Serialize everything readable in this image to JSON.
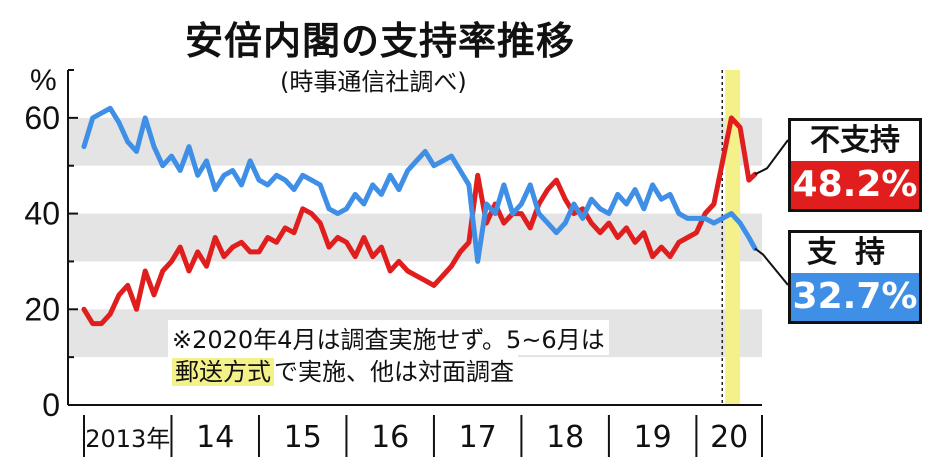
{
  "title": "安倍内閣の支持率推移",
  "subtitle": "(時事通信社調べ)",
  "note_line1": "※2020年4月は調査実施せず。5~6月は",
  "note_line2_highlight": "郵送方式",
  "note_line2_rest": "で実施、他は対面調査",
  "legend": {
    "disapprove_label": "不支持",
    "disapprove_value": "48.2%",
    "approve_label": "支持",
    "approve_value": "32.7%"
  },
  "colors": {
    "disapprove": "#e01e1e",
    "approve": "#3f8fe6",
    "band": "#e4e4e4",
    "highlight": "#f4f08a"
  },
  "chart_data": {
    "type": "line",
    "ylabel": "%",
    "ylim": [
      0,
      70
    ],
    "yticks": [
      0,
      20,
      40,
      60
    ],
    "x_categories": [
      "2013年",
      "14",
      "15",
      "16",
      "17",
      "18",
      "19",
      "20"
    ],
    "x_range_years": [
      2013.0,
      2020.75
    ],
    "highlight_period": {
      "start": 2020.33,
      "end": 2020.5
    },
    "series": [
      {
        "name": "支持",
        "points": [
          [
            2013.0,
            54
          ],
          [
            2013.1,
            60
          ],
          [
            2013.2,
            61
          ],
          [
            2013.3,
            62
          ],
          [
            2013.4,
            59
          ],
          [
            2013.5,
            55
          ],
          [
            2013.6,
            53
          ],
          [
            2013.7,
            60
          ],
          [
            2013.8,
            54
          ],
          [
            2013.9,
            50
          ],
          [
            2014.0,
            52
          ],
          [
            2014.1,
            49
          ],
          [
            2014.2,
            54
          ],
          [
            2014.3,
            48
          ],
          [
            2014.4,
            51
          ],
          [
            2014.5,
            45
          ],
          [
            2014.6,
            48
          ],
          [
            2014.7,
            49
          ],
          [
            2014.8,
            46
          ],
          [
            2014.9,
            51
          ],
          [
            2015.0,
            47
          ],
          [
            2015.1,
            46
          ],
          [
            2015.2,
            48
          ],
          [
            2015.3,
            47
          ],
          [
            2015.4,
            45
          ],
          [
            2015.5,
            48
          ],
          [
            2015.6,
            47
          ],
          [
            2015.7,
            46
          ],
          [
            2015.8,
            41
          ],
          [
            2015.9,
            40
          ],
          [
            2016.0,
            41
          ],
          [
            2016.1,
            44
          ],
          [
            2016.2,
            42
          ],
          [
            2016.3,
            46
          ],
          [
            2016.4,
            44
          ],
          [
            2016.5,
            48
          ],
          [
            2016.6,
            45
          ],
          [
            2016.7,
            49
          ],
          [
            2016.8,
            51
          ],
          [
            2016.9,
            53
          ],
          [
            2017.0,
            50
          ],
          [
            2017.1,
            51
          ],
          [
            2017.2,
            52
          ],
          [
            2017.3,
            49
          ],
          [
            2017.4,
            46
          ],
          [
            2017.5,
            30
          ],
          [
            2017.6,
            42
          ],
          [
            2017.7,
            40
          ],
          [
            2017.8,
            46
          ],
          [
            2017.9,
            40
          ],
          [
            2018.0,
            42
          ],
          [
            2018.1,
            46
          ],
          [
            2018.2,
            40
          ],
          [
            2018.3,
            38
          ],
          [
            2018.4,
            36
          ],
          [
            2018.5,
            38
          ],
          [
            2018.6,
            42
          ],
          [
            2018.7,
            39
          ],
          [
            2018.8,
            43
          ],
          [
            2018.9,
            41
          ],
          [
            2019.0,
            40
          ],
          [
            2019.1,
            44
          ],
          [
            2019.2,
            42
          ],
          [
            2019.3,
            45
          ],
          [
            2019.4,
            41
          ],
          [
            2019.5,
            46
          ],
          [
            2019.6,
            43
          ],
          [
            2019.7,
            44
          ],
          [
            2019.8,
            40
          ],
          [
            2019.9,
            39
          ],
          [
            2020.0,
            39
          ],
          [
            2020.1,
            39
          ],
          [
            2020.2,
            38
          ],
          [
            2020.4,
            40
          ],
          [
            2020.5,
            38
          ],
          [
            2020.6,
            35
          ],
          [
            2020.67,
            32.7
          ]
        ]
      },
      {
        "name": "不支持",
        "points": [
          [
            2013.0,
            20
          ],
          [
            2013.1,
            17
          ],
          [
            2013.2,
            17
          ],
          [
            2013.3,
            19
          ],
          [
            2013.4,
            23
          ],
          [
            2013.5,
            25
          ],
          [
            2013.6,
            20
          ],
          [
            2013.7,
            28
          ],
          [
            2013.8,
            23
          ],
          [
            2013.9,
            28
          ],
          [
            2014.0,
            30
          ],
          [
            2014.1,
            33
          ],
          [
            2014.2,
            28
          ],
          [
            2014.3,
            32
          ],
          [
            2014.4,
            29
          ],
          [
            2014.5,
            35
          ],
          [
            2014.6,
            31
          ],
          [
            2014.7,
            33
          ],
          [
            2014.8,
            34
          ],
          [
            2014.9,
            32
          ],
          [
            2015.0,
            32
          ],
          [
            2015.1,
            35
          ],
          [
            2015.2,
            34
          ],
          [
            2015.3,
            37
          ],
          [
            2015.4,
            36
          ],
          [
            2015.5,
            41
          ],
          [
            2015.6,
            40
          ],
          [
            2015.7,
            38
          ],
          [
            2015.8,
            33
          ],
          [
            2015.9,
            35
          ],
          [
            2016.0,
            34
          ],
          [
            2016.1,
            31
          ],
          [
            2016.2,
            35
          ],
          [
            2016.3,
            31
          ],
          [
            2016.4,
            33
          ],
          [
            2016.5,
            28
          ],
          [
            2016.6,
            30
          ],
          [
            2016.7,
            28
          ],
          [
            2016.8,
            27
          ],
          [
            2016.9,
            26
          ],
          [
            2017.0,
            25
          ],
          [
            2017.1,
            27
          ],
          [
            2017.2,
            29
          ],
          [
            2017.3,
            32
          ],
          [
            2017.4,
            34
          ],
          [
            2017.5,
            48
          ],
          [
            2017.6,
            38
          ],
          [
            2017.7,
            42
          ],
          [
            2017.8,
            38
          ],
          [
            2017.9,
            40
          ],
          [
            2018.0,
            40
          ],
          [
            2018.1,
            37
          ],
          [
            2018.2,
            42
          ],
          [
            2018.3,
            45
          ],
          [
            2018.4,
            47
          ],
          [
            2018.5,
            43
          ],
          [
            2018.6,
            40
          ],
          [
            2018.7,
            41
          ],
          [
            2018.8,
            38
          ],
          [
            2018.9,
            36
          ],
          [
            2019.0,
            38
          ],
          [
            2019.1,
            35
          ],
          [
            2019.2,
            37
          ],
          [
            2019.3,
            34
          ],
          [
            2019.4,
            36
          ],
          [
            2019.5,
            31
          ],
          [
            2019.6,
            33
          ],
          [
            2019.7,
            31
          ],
          [
            2019.8,
            34
          ],
          [
            2019.9,
            35
          ],
          [
            2020.0,
            36
          ],
          [
            2020.1,
            40
          ],
          [
            2020.2,
            42
          ],
          [
            2020.4,
            60
          ],
          [
            2020.5,
            58
          ],
          [
            2020.6,
            47
          ],
          [
            2020.67,
            48.2
          ]
        ]
      }
    ]
  }
}
